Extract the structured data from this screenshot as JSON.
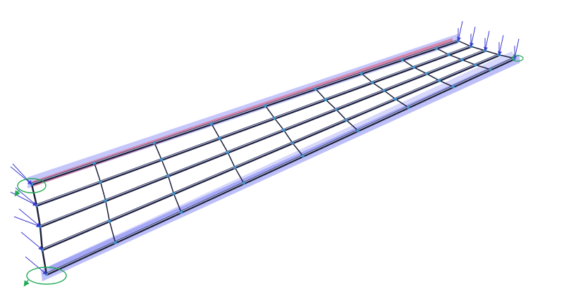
{
  "view": {
    "background": "#ffffff",
    "diagram": "structural-wireframe-3d"
  },
  "structure": {
    "longitudinal_members": 5,
    "transverse_frames": 10,
    "member_color": "#1d1f3a",
    "member_highlight": "#b8bfe6",
    "node_color": "#3a9ad9"
  },
  "result_diagrams": [
    {
      "name": "upper-edge-band",
      "color": "#e0506a"
    },
    {
      "name": "lower-edge-band",
      "color": "#5a5ff0"
    }
  ],
  "supports": {
    "load_arrow_color": "#3a3ad0",
    "rotation_symbol_color": "#1faa55"
  }
}
